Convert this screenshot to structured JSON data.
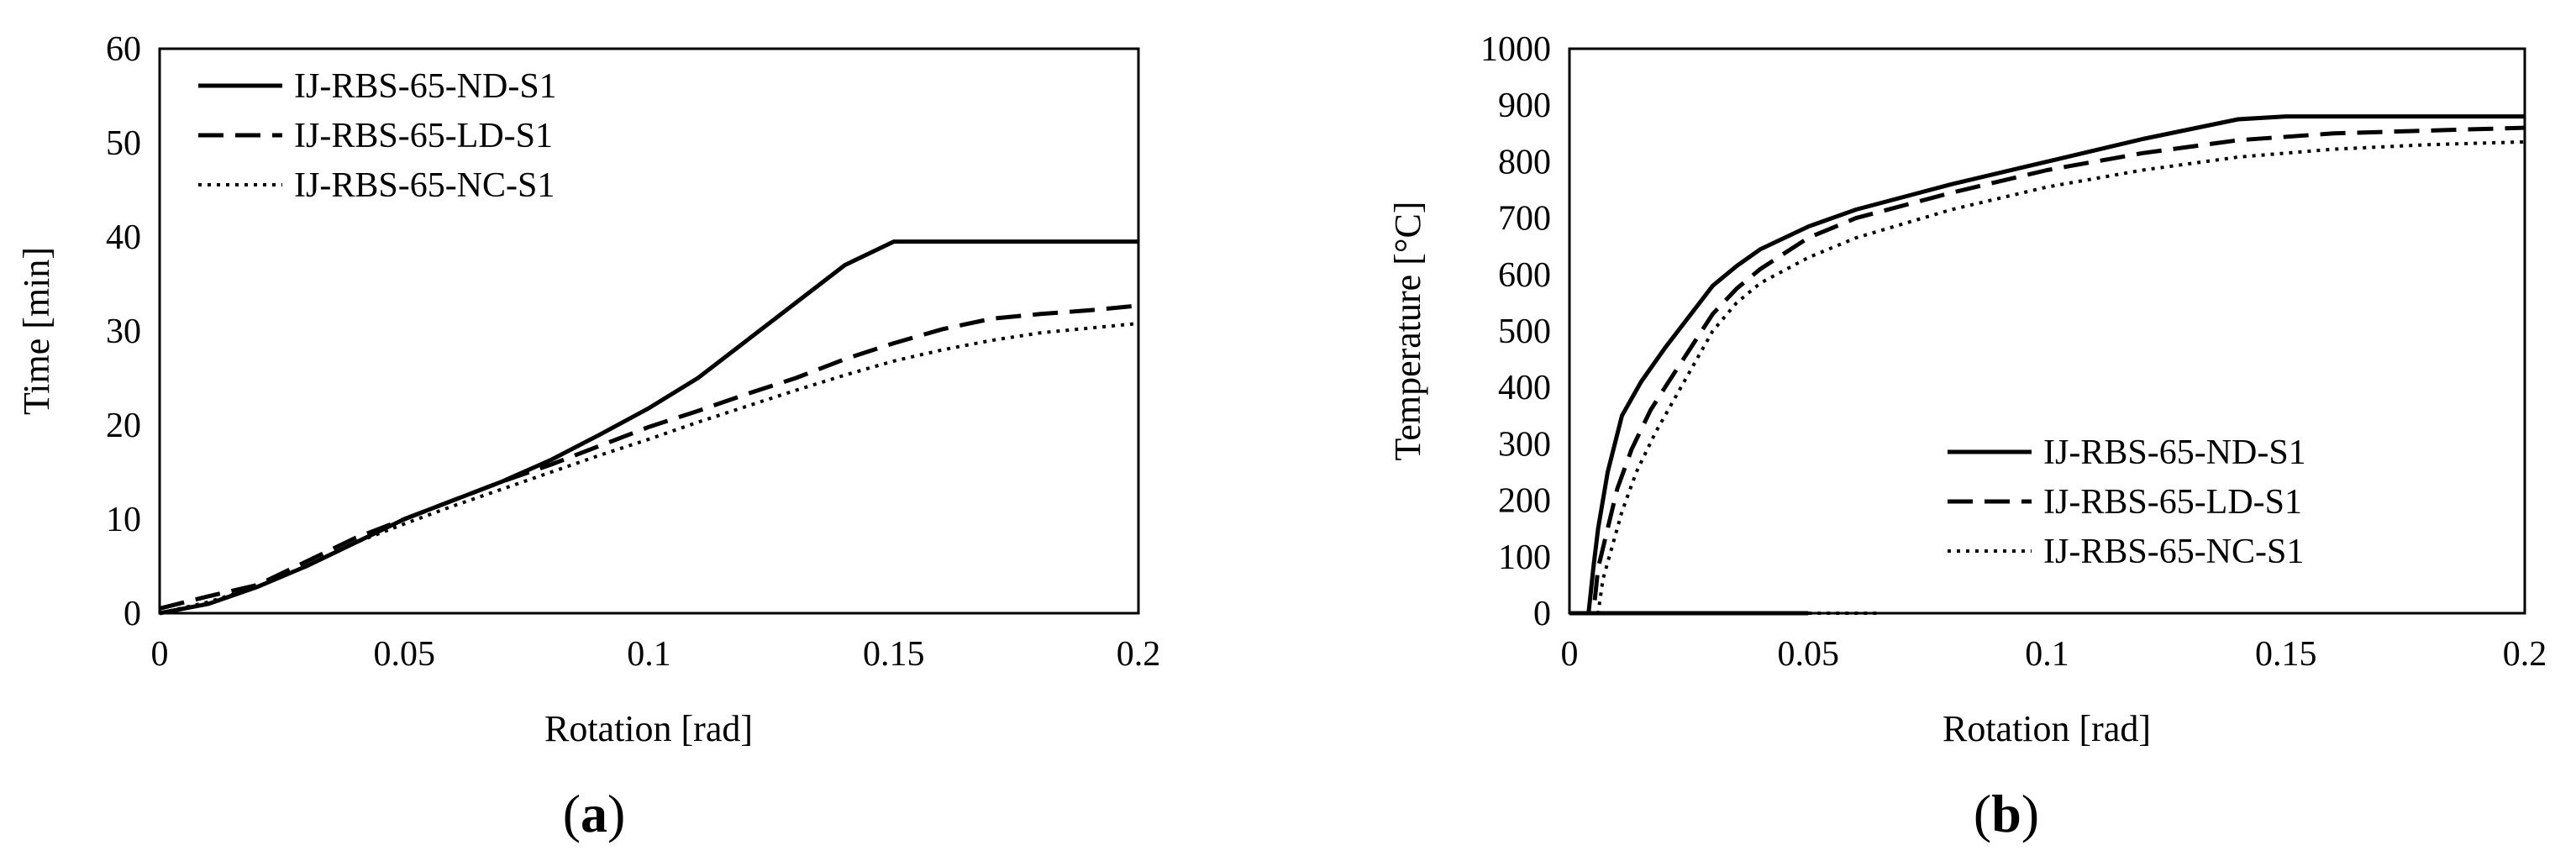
{
  "chart_data": [
    {
      "type": "line",
      "panel_label": {
        "open": "(",
        "letter": "a",
        "close": ")"
      },
      "title": "",
      "xlabel": "Rotation [rad]",
      "ylabel": "Time [min]",
      "xlim": [
        0,
        0.2
      ],
      "ylim": [
        0,
        60
      ],
      "xticks": [
        0,
        0.05,
        0.1,
        0.15,
        0.2
      ],
      "xtick_labels": [
        "0",
        "0.05",
        "0.1",
        "0.15",
        "0.2"
      ],
      "yticks": [
        0,
        10,
        20,
        30,
        40,
        50,
        60
      ],
      "ytick_labels": [
        "0",
        "10",
        "20",
        "30",
        "40",
        "50",
        "60"
      ],
      "grid": false,
      "legend_position": "top-left",
      "series": [
        {
          "name": "IJ-RBS-65-ND-S1",
          "style": "solid",
          "x": [
            0,
            0.01,
            0.02,
            0.03,
            0.04,
            0.05,
            0.06,
            0.07,
            0.08,
            0.09,
            0.1,
            0.11,
            0.12,
            0.13,
            0.14,
            0.15,
            0.16,
            0.18,
            0.2
          ],
          "y": [
            0,
            1,
            2.8,
            5,
            7.5,
            10,
            12,
            14,
            16.3,
            19,
            21.8,
            25,
            29,
            33,
            37,
            39.5,
            39.5,
            39.5,
            39.5
          ]
        },
        {
          "name": "IJ-RBS-65-LD-S1",
          "style": "dashed",
          "x": [
            0,
            0.01,
            0.02,
            0.03,
            0.04,
            0.05,
            0.06,
            0.07,
            0.08,
            0.09,
            0.1,
            0.11,
            0.12,
            0.13,
            0.14,
            0.15,
            0.16,
            0.17,
            0.18,
            0.19,
            0.2
          ],
          "y": [
            0.5,
            1.8,
            3,
            5.5,
            8,
            10,
            12,
            14,
            15.8,
            17.8,
            19.8,
            21.5,
            23.3,
            25,
            27,
            28.7,
            30.2,
            31.3,
            31.8,
            32.2,
            32.7
          ]
        },
        {
          "name": "IJ-RBS-65-NC-S1",
          "style": "dotted",
          "x": [
            0,
            0.01,
            0.02,
            0.03,
            0.04,
            0.05,
            0.06,
            0.07,
            0.08,
            0.09,
            0.1,
            0.11,
            0.12,
            0.13,
            0.14,
            0.15,
            0.16,
            0.17,
            0.18,
            0.19,
            0.2
          ],
          "y": [
            0,
            1.2,
            2.8,
            5,
            7.5,
            9.5,
            11.4,
            13.2,
            15,
            16.8,
            18.5,
            20.3,
            22,
            23.7,
            25.3,
            26.8,
            28,
            29,
            29.8,
            30.3,
            30.8
          ]
        }
      ]
    },
    {
      "type": "line",
      "panel_label": {
        "open": "(",
        "letter": "b",
        "close": ")"
      },
      "title": "",
      "xlabel": "Rotation [rad]",
      "ylabel": "Temperature [°C]",
      "xlim": [
        0,
        0.2
      ],
      "ylim": [
        0,
        1000
      ],
      "xticks": [
        0,
        0.05,
        0.1,
        0.15,
        0.2
      ],
      "xtick_labels": [
        "0",
        "0.05",
        "0.1",
        "0.15",
        "0.2"
      ],
      "yticks": [
        0,
        100,
        200,
        300,
        400,
        500,
        600,
        700,
        800,
        900,
        1000
      ],
      "ytick_labels": [
        "0",
        "100",
        "200",
        "300",
        "400",
        "500",
        "600",
        "700",
        "800",
        "900",
        "1000"
      ],
      "grid": false,
      "legend_position": "bottom-right",
      "series": [
        {
          "name": "IJ-RBS-65-ND-S1",
          "style": "solid",
          "x": [
            0,
            0.004,
            0.0045,
            0.005,
            0.006,
            0.008,
            0.011,
            0.015,
            0.02,
            0.025,
            0.03,
            0.035,
            0.04,
            0.05,
            0.06,
            0.08,
            0.1,
            0.12,
            0.14,
            0.15,
            0.2
          ],
          "y": [
            0,
            0,
            40,
            80,
            150,
            250,
            350,
            410,
            470,
            525,
            580,
            615,
            645,
            685,
            715,
            760,
            800,
            840,
            875,
            880,
            880
          ]
        },
        {
          "name": "IJ-RBS-65-LD-S1",
          "style": "dashed",
          "x": [
            0,
            0.005,
            0.0055,
            0.006,
            0.008,
            0.01,
            0.013,
            0.017,
            0.02,
            0.025,
            0.03,
            0.035,
            0.04,
            0.05,
            0.06,
            0.08,
            0.1,
            0.12,
            0.14,
            0.16,
            0.18,
            0.2
          ],
          "y": [
            0,
            0,
            40,
            80,
            150,
            220,
            290,
            360,
            400,
            465,
            530,
            575,
            610,
            665,
            700,
            745,
            785,
            815,
            838,
            850,
            855,
            860
          ]
        },
        {
          "name": "IJ-RBS-65-NC-S1",
          "style": "dotted",
          "x": [
            0,
            0.006,
            0.0065,
            0.007,
            0.009,
            0.011,
            0.014,
            0.018,
            0.022,
            0.026,
            0.03,
            0.035,
            0.04,
            0.05,
            0.06,
            0.08,
            0.1,
            0.12,
            0.14,
            0.16,
            0.18,
            0.2
          ],
          "y": [
            0,
            0,
            30,
            60,
            120,
            180,
            250,
            320,
            380,
            440,
            500,
            550,
            585,
            630,
            665,
            715,
            755,
            785,
            808,
            822,
            830,
            835
          ]
        }
      ],
      "extra_lines": [
        {
          "style": "solid",
          "x": [
            0,
            0.05
          ],
          "y": [
            0,
            0
          ]
        },
        {
          "style": "dotted",
          "x": [
            0.05,
            0.065
          ],
          "y": [
            0,
            0
          ]
        }
      ]
    }
  ]
}
